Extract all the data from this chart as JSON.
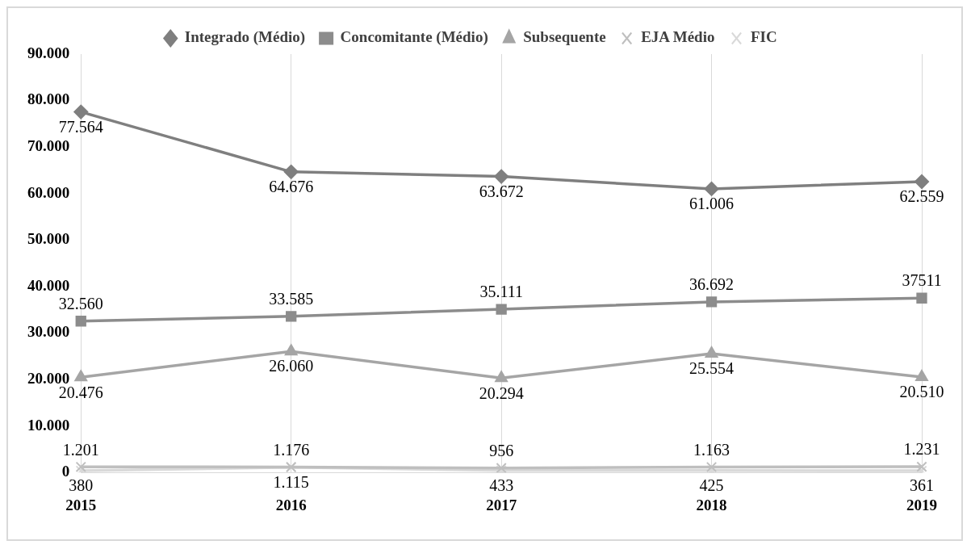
{
  "chart_data": {
    "type": "line",
    "categories": [
      "2015",
      "2016",
      "2017",
      "2018",
      "2019"
    ],
    "series": [
      {
        "name": "Integrado (Médio)",
        "color": "#7f7f7f",
        "marker": "diamond",
        "values": [
          77564,
          64676,
          63672,
          61006,
          62559
        ],
        "value_labels": [
          "77.564",
          "64.676",
          "63.672",
          "61.006",
          "62.559"
        ]
      },
      {
        "name": "Concomitante (Médio)",
        "color": "#8c8c8c",
        "marker": "square",
        "values": [
          32560,
          33585,
          35111,
          36692,
          37511
        ],
        "value_labels": [
          "32.560",
          "33.585",
          "35.111",
          "36.692",
          "37511"
        ]
      },
      {
        "name": "Subsequente",
        "color": "#a5a5a5",
        "marker": "triangle",
        "values": [
          20476,
          26060,
          20294,
          25554,
          20510
        ],
        "value_labels": [
          "20.476",
          "26.060",
          "20.294",
          "25.554",
          "20.510"
        ]
      },
      {
        "name": "EJA Médio",
        "color": "#bfbfbf",
        "marker": "cross",
        "values": [
          1201,
          1176,
          956,
          1163,
          1231
        ],
        "value_labels": [
          "1.201",
          "1.176",
          "956",
          "1.163",
          "1.231"
        ]
      },
      {
        "name": "FIC",
        "color": "#d9d9d9",
        "marker": "cross",
        "values": [
          380,
          1115,
          433,
          425,
          361
        ],
        "value_labels": [
          "380",
          "1.115",
          "433",
          "425",
          "361"
        ]
      }
    ],
    "ylim": [
      0,
      90000
    ],
    "yticks": [
      {
        "value": 0,
        "label": "0"
      },
      {
        "value": 10000,
        "label": "10.000"
      },
      {
        "value": 20000,
        "label": "20.000"
      },
      {
        "value": 30000,
        "label": "30.000"
      },
      {
        "value": 40000,
        "label": "40.000"
      },
      {
        "value": 50000,
        "label": "50.000"
      },
      {
        "value": 60000,
        "label": "60.000"
      },
      {
        "value": 70000,
        "label": "70.000"
      },
      {
        "value": 80000,
        "label": "80.000"
      },
      {
        "value": 90000,
        "label": "90.000"
      }
    ],
    "grid": "x",
    "legend": "top"
  }
}
